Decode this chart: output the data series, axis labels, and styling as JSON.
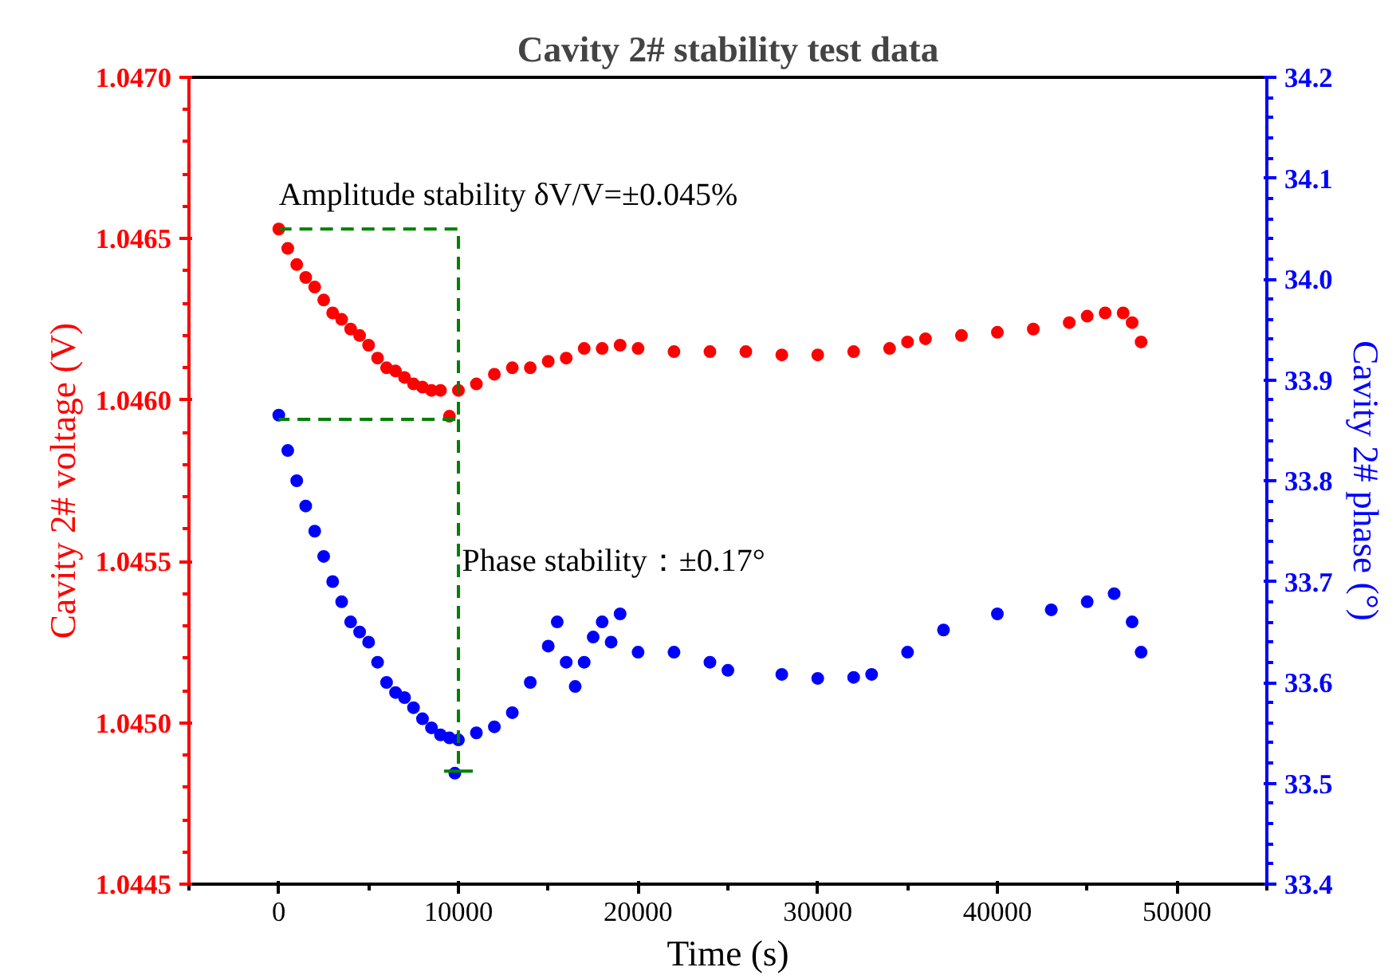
{
  "chart_data": {
    "type": "scatter",
    "title": "Cavity 2# stability test data",
    "xlabel": "Time (s)",
    "ylabel": "Cavity 2# voltage (V)",
    "y2label": "Cavity 2# phase (°)",
    "xlim": [
      -5000,
      55000
    ],
    "xticks": [
      0,
      10000,
      20000,
      30000,
      40000,
      50000
    ],
    "ylim": [
      1.0445,
      1.047
    ],
    "yticks": [
      1.0445,
      {
        "value": 1.045,
        "label": "1.0450"
      },
      1.0455,
      {
        "value": 1.046,
        "label": "1.0460"
      },
      1.0465,
      {
        "value": 1.047,
        "label": "1.0470"
      }
    ],
    "y2lim": [
      33.4,
      34.2
    ],
    "y2ticks": [
      33.4,
      33.5,
      33.6,
      33.7,
      33.8,
      33.9,
      {
        "value": 34,
        "label": "34.0"
      },
      34.1,
      34.2
    ],
    "marker": "circle",
    "grid": false,
    "annotations": [
      {
        "text": "Amplitude stability  δV/V=±0.045%",
        "x": 0,
        "y": 1.04653
      },
      {
        "text": "Phase stability：±0.17°",
        "x": 10200,
        "y": 1.0455
      }
    ],
    "series": [
      {
        "color": "#ff0000",
        "x": [
          0,
          500,
          1000,
          1500,
          2000,
          2500,
          3000,
          3500,
          4000,
          4500,
          5000,
          5500,
          6000,
          6500,
          7000,
          7500,
          8000,
          8500,
          9000,
          9500,
          10000,
          11000,
          12000,
          13000,
          14000,
          15000,
          16000,
          17000,
          18000,
          19000,
          20000,
          22000,
          24000,
          26000,
          28000,
          30000,
          32000,
          34000,
          35000,
          36000,
          38000,
          40000,
          42000,
          44000,
          45000,
          46000,
          47000,
          47500,
          48000
        ],
        "values": [
          1.04653,
          1.04647,
          1.04642,
          1.04638,
          1.04635,
          1.04631,
          1.04627,
          1.04625,
          1.04622,
          1.0462,
          1.04617,
          1.04613,
          1.0461,
          1.04609,
          1.04607,
          1.04605,
          1.04604,
          1.04603,
          1.04603,
          1.04595,
          1.04603,
          1.04605,
          1.04608,
          1.0461,
          1.0461,
          1.04612,
          1.04613,
          1.04616,
          1.04616,
          1.04617,
          1.04616,
          1.04615,
          1.04615,
          1.04615,
          1.04614,
          1.04614,
          1.04615,
          1.04616,
          1.04618,
          1.04619,
          1.0462,
          1.04621,
          1.04622,
          1.04624,
          1.04626,
          1.04627,
          1.04627,
          1.04624,
          1.04618
        ]
      },
      {
        "color": "#0000ff",
        "axis": "y2",
        "x": [
          0,
          500,
          1000,
          1500,
          2000,
          2500,
          3000,
          3500,
          4000,
          4500,
          5000,
          5500,
          6000,
          6500,
          7000,
          7500,
          8000,
          8500,
          9000,
          9500,
          9800,
          10000,
          11000,
          12000,
          13000,
          14000,
          15000,
          15500,
          16000,
          16500,
          17000,
          17500,
          18000,
          18500,
          19000,
          20000,
          22000,
          24000,
          25000,
          28000,
          30000,
          32000,
          33000,
          35000,
          37000,
          40000,
          43000,
          45000,
          46500,
          47500,
          48000
        ],
        "values": [
          33.865,
          33.83,
          33.8,
          33.775,
          33.75,
          33.725,
          33.7,
          33.68,
          33.66,
          33.65,
          33.64,
          33.62,
          33.6,
          33.59,
          33.585,
          33.575,
          33.564,
          33.555,
          33.548,
          33.545,
          33.51,
          33.543,
          33.55,
          33.556,
          33.57,
          33.6,
          33.636,
          33.66,
          33.62,
          33.596,
          33.62,
          33.645,
          33.66,
          33.64,
          33.668,
          33.63,
          33.63,
          33.62,
          33.612,
          33.608,
          33.604,
          33.605,
          33.608,
          33.63,
          33.652,
          33.668,
          33.672,
          33.68,
          33.688,
          33.66,
          33.63
        ]
      },
      {
        "type": "line",
        "marker": "none",
        "color": "#008000",
        "line_style": "dashed",
        "x": [
          0,
          10000,
          10000,
          0
        ],
        "values": [
          1.04653,
          1.04653,
          1.04594,
          1.04594
        ]
      },
      {
        "type": "line",
        "marker": "none",
        "color": "#008000",
        "line_style": "dashed",
        "x": [
          10000,
          10000
        ],
        "values": [
          1.04594,
          1.04485
        ]
      },
      {
        "type": "line",
        "marker": "none",
        "color": "#008000",
        "line_style": "solid",
        "x": [
          9200,
          10800
        ],
        "values": [
          1.04485,
          1.04485
        ]
      }
    ]
  }
}
